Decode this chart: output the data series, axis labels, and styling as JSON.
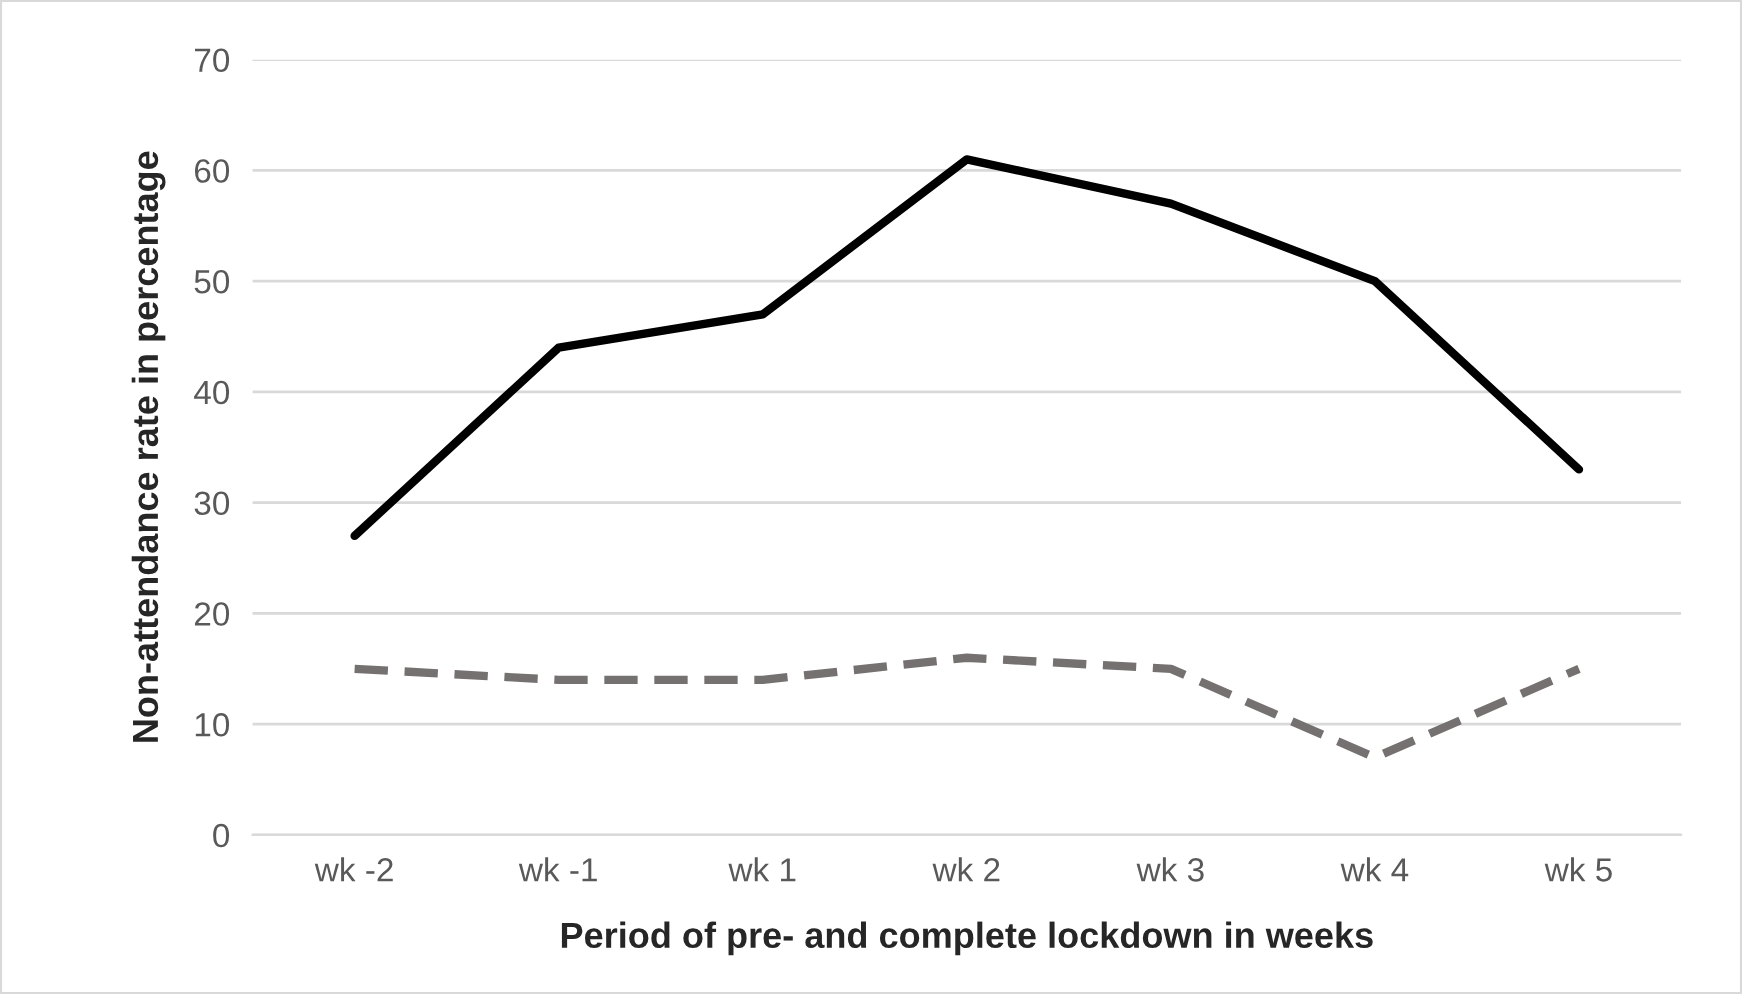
{
  "chart_data": {
    "type": "line",
    "xlabel": "Period of pre- and complete lockdown in weeks",
    "ylabel": "Non-attendance rate in percentage",
    "categories": [
      "wk -2",
      "wk -1",
      "wk 1",
      "wk 2",
      "wk 3",
      "wk 4",
      "wk 5"
    ],
    "series": [
      {
        "color": "#000000",
        "line_style": "solid",
        "values": [
          27,
          44,
          47,
          61,
          57,
          50,
          33
        ]
      },
      {
        "color": "#767171",
        "line_style": "dashed",
        "values": [
          15,
          14,
          14,
          16,
          15,
          7,
          15
        ]
      }
    ],
    "ylim": [
      0,
      70
    ],
    "yticks": [
      0,
      10,
      20,
      30,
      40,
      50,
      60,
      70
    ],
    "grid": "y",
    "marker": "none"
  }
}
